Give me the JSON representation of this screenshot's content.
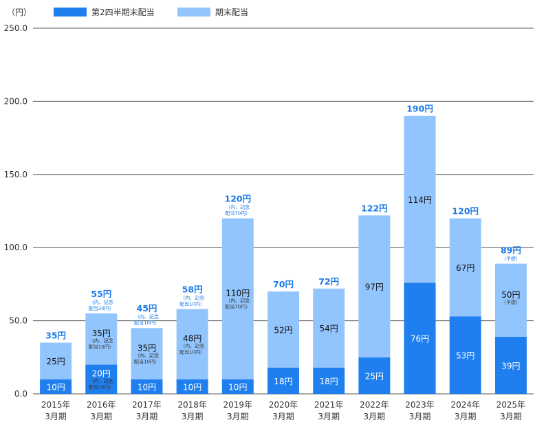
{
  "chart_data": {
    "type": "bar",
    "stacked": true,
    "unit_label": "（円）",
    "ylim": [
      0,
      250
    ],
    "yticks": [
      "0.0",
      "50.0",
      "100.0",
      "150.0",
      "200.0",
      "250.0"
    ],
    "grid": true,
    "legend_position": "top-left",
    "categories": [
      [
        "2015年",
        "3月期"
      ],
      [
        "2016年",
        "3月期"
      ],
      [
        "2017年",
        "3月期"
      ],
      [
        "2018年",
        "3月期"
      ],
      [
        "2019年",
        "3月期"
      ],
      [
        "2020年",
        "3月期"
      ],
      [
        "2021年",
        "3月期"
      ],
      [
        "2022年",
        "3月期"
      ],
      [
        "2023年",
        "3月期"
      ],
      [
        "2024年",
        "3月期"
      ],
      [
        "2025年",
        "3月期"
      ]
    ],
    "series": [
      {
        "name": "第2四半期末配当",
        "color": "#1f7fee",
        "label_color": "#ffffff",
        "values": [
          10,
          20,
          10,
          10,
          10,
          18,
          18,
          25,
          76,
          53,
          39
        ],
        "labels": [
          "10円",
          "20円",
          "10円",
          "10円",
          "10円",
          "18円",
          "18円",
          "25円",
          "76円",
          "53円",
          "39円"
        ],
        "notes": [
          [],
          [
            "（内、記念",
            "配当10円）"
          ],
          [],
          [],
          [],
          [],
          [],
          [],
          [],
          [],
          []
        ]
      },
      {
        "name": "期末配当",
        "color": "#92c5fd",
        "label_color": "#111111",
        "values": [
          25,
          35,
          35,
          48,
          110,
          52,
          54,
          97,
          114,
          67,
          50
        ],
        "labels": [
          "25円",
          "35円",
          "35円",
          "48円",
          "110円",
          "52円",
          "54円",
          "97円",
          "114円",
          "67円",
          "50円"
        ],
        "notes": [
          [],
          [
            "（内、記念",
            "配当10円）"
          ],
          [
            "（内、記念",
            "配当10円）"
          ],
          [
            "（内、記念",
            "配当10円）"
          ],
          [
            "（内、記念",
            "配当70円）"
          ],
          [],
          [],
          [],
          [],
          [],
          [
            "（予想）"
          ]
        ]
      }
    ],
    "totals": [
      "35円",
      "55円",
      "45円",
      "58円",
      "120円",
      "70円",
      "72円",
      "122円",
      "190円",
      "120円",
      "89円"
    ],
    "total_notes": [
      [],
      [
        "（内、記念",
        "配当20円）"
      ],
      [
        "（内、記念",
        "配当10円）"
      ],
      [
        "（内、記念",
        "配当10円）"
      ],
      [
        "（内、記念",
        "配当70円）"
      ],
      [],
      [],
      [],
      [],
      [],
      [
        "（予想）"
      ]
    ]
  }
}
